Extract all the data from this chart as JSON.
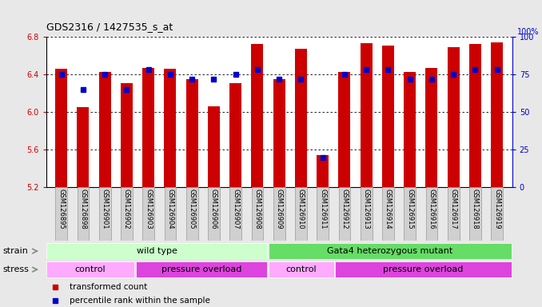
{
  "title": "GDS2316 / 1427535_s_at",
  "samples": [
    "GSM126895",
    "GSM126898",
    "GSM126901",
    "GSM126902",
    "GSM126903",
    "GSM126904",
    "GSM126905",
    "GSM126906",
    "GSM126907",
    "GSM126908",
    "GSM126909",
    "GSM126910",
    "GSM126911",
    "GSM126912",
    "GSM126913",
    "GSM126914",
    "GSM126915",
    "GSM126916",
    "GSM126917",
    "GSM126918",
    "GSM126919"
  ],
  "transformed_count": [
    6.46,
    6.05,
    6.43,
    6.31,
    6.47,
    6.46,
    6.35,
    6.06,
    6.31,
    6.72,
    6.35,
    6.67,
    5.54,
    6.43,
    6.73,
    6.71,
    6.43,
    6.47,
    6.69,
    6.72,
    6.74
  ],
  "percentile_rank": [
    75,
    65,
    75,
    65,
    78,
    75,
    72,
    72,
    75,
    78,
    72,
    72,
    20,
    75,
    78,
    78,
    72,
    72,
    75,
    78,
    78
  ],
  "ylim_left": [
    5.2,
    6.8
  ],
  "ylim_right": [
    0,
    100
  ],
  "yticks_left": [
    5.2,
    5.6,
    6.0,
    6.4,
    6.8
  ],
  "yticks_right": [
    0,
    25,
    50,
    75,
    100
  ],
  "bar_color": "#cc0000",
  "dot_color": "#0000cc",
  "bg_color": "#e8e8e8",
  "plot_bg": "#ffffff",
  "strain_labels": [
    {
      "text": "wild type",
      "start": 0,
      "end": 10,
      "color": "#ccffcc"
    },
    {
      "text": "Gata4 heterozygous mutant",
      "start": 10,
      "end": 21,
      "color": "#66dd66"
    }
  ],
  "stress_groups": [
    {
      "text": "control",
      "start": 0,
      "end": 4,
      "color": "#ffaaff"
    },
    {
      "text": "pressure overload",
      "start": 4,
      "end": 10,
      "color": "#dd44dd"
    },
    {
      "text": "control",
      "start": 10,
      "end": 13,
      "color": "#ffaaff"
    },
    {
      "text": "pressure overload",
      "start": 13,
      "end": 21,
      "color": "#dd44dd"
    }
  ],
  "legend_items": [
    {
      "label": "transformed count",
      "color": "#cc0000"
    },
    {
      "label": "percentile rank within the sample",
      "color": "#0000cc"
    }
  ],
  "title_fontsize": 9,
  "tick_fontsize": 7,
  "label_fontsize": 8,
  "sample_fontsize": 6
}
